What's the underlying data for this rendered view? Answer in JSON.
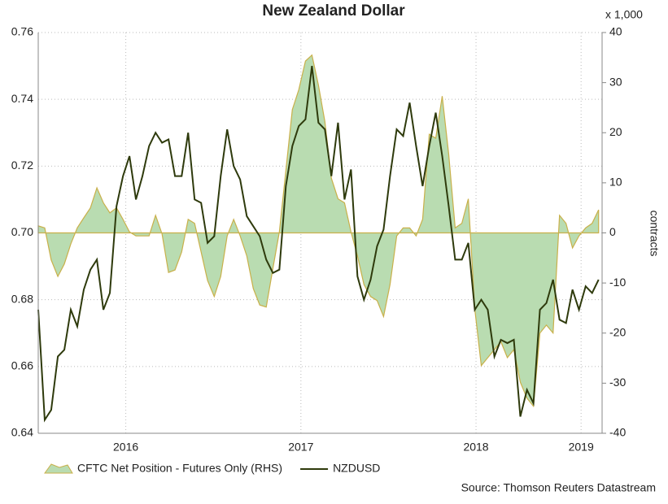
{
  "chart_data": {
    "type": "line",
    "title": "New Zealand Dollar",
    "y2_unit": "x 1,000",
    "y2label": "contracts",
    "source": "Source: Thomson Reuters Datastream",
    "x": [
      2016.0,
      2016.037,
      2016.074,
      2016.112,
      2016.149,
      2016.186,
      2016.223,
      2016.26,
      2016.298,
      2016.335,
      2016.372,
      2016.409,
      2016.447,
      2016.484,
      2016.521,
      2016.558,
      2016.595,
      2016.633,
      2016.67,
      2016.707,
      2016.744,
      2016.781,
      2016.819,
      2016.856,
      2016.893,
      2016.93,
      2016.967,
      2017.005,
      2017.042,
      2017.079,
      2017.116,
      2017.153,
      2017.191,
      2017.228,
      2017.265,
      2017.302,
      2017.34,
      2017.377,
      2017.414,
      2017.451,
      2017.488,
      2017.526,
      2017.563,
      2017.6,
      2017.637,
      2017.674,
      2017.712,
      2017.749,
      2017.786,
      2017.823,
      2017.86,
      2017.898,
      2017.935,
      2017.972,
      2018.009,
      2018.047,
      2018.084,
      2018.121,
      2018.158,
      2018.195,
      2018.233,
      2018.27,
      2018.307,
      2018.344,
      2018.381,
      2018.419,
      2018.456,
      2018.493,
      2018.53,
      2018.567,
      2018.605,
      2018.642,
      2018.679,
      2018.716,
      2018.753,
      2018.791,
      2018.828,
      2018.865,
      2018.902,
      2018.94,
      2018.977,
      2019.014,
      2019.051,
      2019.088,
      2019.126,
      2019.163,
      2019.2
    ],
    "xlim": [
      2016.0,
      2019.22
    ],
    "xticks": [
      {
        "value": 2016.5,
        "label": "2016"
      },
      {
        "value": 2017.5,
        "label": "2017"
      },
      {
        "value": 2018.5,
        "label": "2018"
      },
      {
        "value": 2019.1,
        "label": "2019"
      }
    ],
    "ylim": [
      0.64,
      0.76
    ],
    "yticks": [
      0.64,
      0.66,
      0.68,
      {
        "value": 0.7,
        "label": "0.70"
      },
      0.72,
      0.74,
      0.76
    ],
    "y2lim": [
      -40,
      40
    ],
    "y2ticks": [
      -40,
      -30,
      -20,
      -10,
      0,
      10,
      20,
      30,
      40
    ],
    "grid": true,
    "series": [
      {
        "name": "CFTC Net Position - Futures Only (RHS)",
        "type": "area",
        "axis": "y2",
        "color": "#b9dcb1",
        "line_color": "#c9b04a",
        "values": [
          1.4,
          1,
          -5.4,
          -8.7,
          -6.2,
          -2.2,
          1,
          3,
          5,
          9,
          6,
          4,
          5,
          2.7,
          0.2,
          -0.6,
          -0.6,
          -0.6,
          3.5,
          -0.2,
          -7.9,
          -7.4,
          -3.8,
          2.7,
          1.9,
          -3.8,
          -9.5,
          -12.7,
          -8.7,
          -0.6,
          2.7,
          -0.6,
          -4.6,
          -11.1,
          -14.4,
          -14.8,
          -7.1,
          0.2,
          12.4,
          24.6,
          28.6,
          34.3,
          35.5,
          29.5,
          22.2,
          10.9,
          6.8,
          6,
          0.2,
          -4.6,
          -10.3,
          -12.7,
          -13.5,
          -16.7,
          -10.3,
          -0.6,
          1,
          1,
          -0.6,
          2.7,
          19.7,
          18.9,
          27.3,
          15.7,
          1,
          1.9,
          6.8,
          -15.2,
          -26.5,
          -24.9,
          -23.3,
          -21.7,
          -24.9,
          -23.3,
          -29.8,
          -33,
          -34.6,
          -20,
          -18.4,
          -20,
          3.5,
          1.9,
          -3,
          -0.6,
          1,
          1.9,
          4.6
        ]
      },
      {
        "name": "NZDUSD",
        "type": "line",
        "color": "#2e3a0c",
        "values": [
          0.677,
          0.644,
          0.647,
          0.663,
          0.665,
          0.677,
          0.672,
          0.683,
          0.689,
          0.692,
          0.677,
          0.682,
          0.708,
          0.717,
          0.723,
          0.71,
          0.717,
          0.726,
          0.73,
          0.727,
          0.728,
          0.717,
          0.717,
          0.73,
          0.71,
          0.709,
          0.697,
          0.699,
          0.717,
          0.731,
          0.72,
          0.716,
          0.705,
          0.702,
          0.699,
          0.692,
          0.688,
          0.689,
          0.714,
          0.726,
          0.732,
          0.734,
          0.75,
          0.733,
          0.731,
          0.717,
          0.733,
          0.71,
          0.719,
          0.687,
          0.68,
          0.686,
          0.696,
          0.701,
          0.717,
          0.731,
          0.729,
          0.739,
          0.726,
          0.714,
          0.726,
          0.736,
          0.723,
          0.708,
          0.692,
          0.692,
          0.697,
          0.677,
          0.68,
          0.677,
          0.663,
          0.668,
          0.667,
          0.668,
          0.645,
          0.653,
          0.649,
          0.677,
          0.679,
          0.686,
          0.674,
          0.673,
          0.683,
          0.677,
          0.684,
          0.682,
          0.686
        ]
      }
    ]
  }
}
